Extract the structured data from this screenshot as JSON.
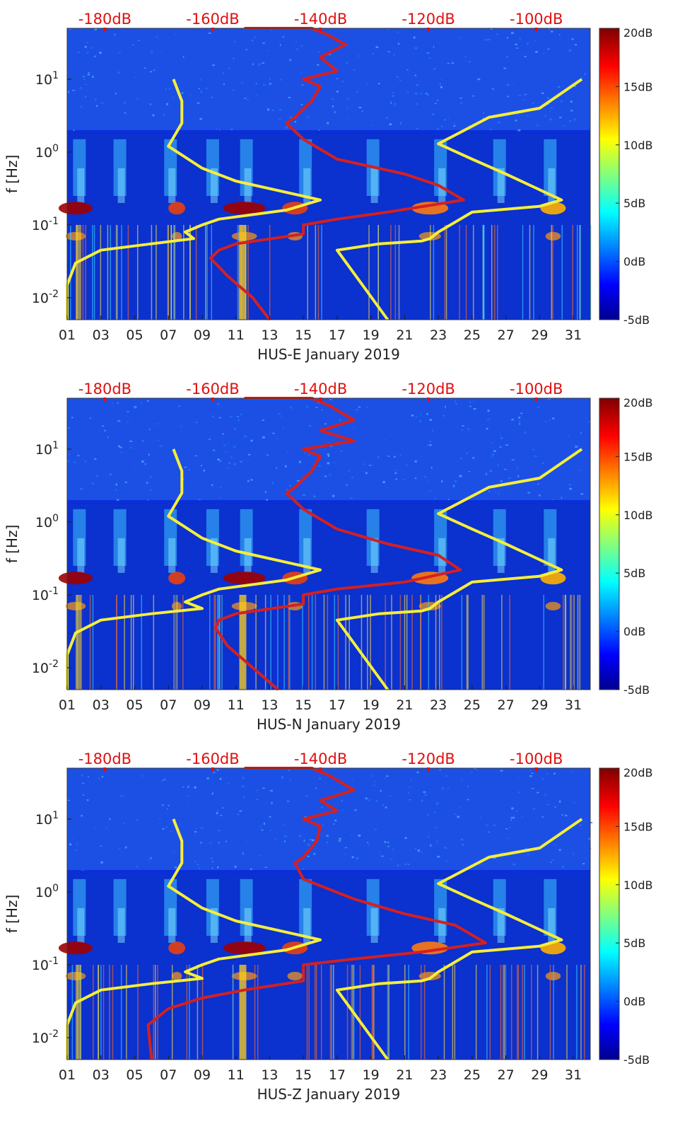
{
  "chart_data": [
    {
      "type": "heatmap",
      "xlabel": "HUS-E January 2019",
      "ylabel": "f [Hz]",
      "xticks": [
        "01",
        "03",
        "05",
        "07",
        "09",
        "11",
        "13",
        "15",
        "17",
        "19",
        "21",
        "23",
        "25",
        "27",
        "29",
        "31"
      ],
      "xlim": [
        1,
        32
      ],
      "yscale": "log",
      "ylim": [
        0.005,
        50
      ],
      "yticks": [
        {
          "v": 0.01,
          "b": "10",
          "e": "-2"
        },
        {
          "v": 0.1,
          "b": "10",
          "e": "-1"
        },
        {
          "v": 1,
          "b": "10",
          "e": "0"
        },
        {
          "v": 10,
          "b": "10",
          "e": "1"
        }
      ],
      "top_axis": {
        "labels": [
          "-180dB",
          "-160dB",
          "-140dB",
          "-120dB",
          "-100dB"
        ],
        "range": [
          -187,
          -90
        ]
      },
      "colorbar": {
        "labels": [
          "20dB",
          "15dB",
          "10dB",
          "5dB",
          "0dB",
          "-5dB"
        ],
        "range": [
          -5,
          20
        ]
      },
      "series": [
        {
          "color": "#f5ee3a",
          "points": [
            [
              1,
              0.005
            ],
            [
              1,
              0.015
            ],
            [
              1.5,
              0.03
            ],
            [
              3,
              0.045
            ],
            [
              6,
              0.055
            ],
            [
              8.5,
              0.065
            ],
            [
              8,
              0.08
            ],
            [
              9,
              0.1
            ],
            [
              10,
              0.12
            ],
            [
              14,
              0.16
            ],
            [
              16,
              0.22
            ],
            [
              11,
              0.4
            ],
            [
              9,
              0.6
            ],
            [
              7,
              1.2
            ],
            [
              7.8,
              2.5
            ],
            [
              7.8,
              5
            ],
            [
              7.3,
              10
            ]
          ]
        },
        {
          "color": "#f5ee3a",
          "points": [
            [
              20,
              0.005
            ],
            [
              17,
              0.045
            ],
            [
              19.5,
              0.055
            ],
            [
              22,
              0.06
            ],
            [
              22.5,
              0.065
            ],
            [
              23,
              0.08
            ],
            [
              25,
              0.15
            ],
            [
              29,
              0.18
            ],
            [
              30.3,
              0.22
            ],
            [
              27,
              0.5
            ],
            [
              25,
              0.8
            ],
            [
              23,
              1.3
            ],
            [
              26,
              3
            ],
            [
              29,
              4
            ],
            [
              31.5,
              10
            ]
          ]
        },
        {
          "color": "#d42020",
          "points": [
            [
              13,
              0.005
            ],
            [
              12,
              0.01
            ],
            [
              10.5,
              0.02
            ],
            [
              9.5,
              0.035
            ],
            [
              10,
              0.045
            ],
            [
              11,
              0.055
            ],
            [
              15,
              0.075
            ],
            [
              15,
              0.1
            ],
            [
              17,
              0.12
            ],
            [
              20,
              0.15
            ],
            [
              24.5,
              0.22
            ],
            [
              23,
              0.35
            ],
            [
              21,
              0.5
            ],
            [
              17,
              0.8
            ],
            [
              15,
              1.5
            ],
            [
              14,
              2.5
            ],
            [
              14.5,
              3
            ],
            [
              15.5,
              5
            ],
            [
              16,
              8
            ],
            [
              15,
              10
            ],
            [
              17,
              13
            ],
            [
              16,
              20
            ],
            [
              17.5,
              30
            ],
            [
              16.5,
              40
            ],
            [
              15.5,
              50
            ],
            [
              11.5,
              50
            ]
          ]
        }
      ]
    },
    {
      "type": "heatmap",
      "xlabel": "HUS-N January 2019",
      "ylabel": "f [Hz]",
      "xticks": [
        "01",
        "03",
        "05",
        "07",
        "09",
        "11",
        "13",
        "15",
        "17",
        "19",
        "21",
        "23",
        "25",
        "27",
        "29",
        "31"
      ],
      "xlim": [
        1,
        32
      ],
      "yscale": "log",
      "ylim": [
        0.005,
        50
      ],
      "yticks": [
        {
          "v": 0.01,
          "b": "10",
          "e": "-2"
        },
        {
          "v": 0.1,
          "b": "10",
          "e": "-1"
        },
        {
          "v": 1,
          "b": "10",
          "e": "0"
        },
        {
          "v": 10,
          "b": "10",
          "e": "1"
        }
      ],
      "top_axis": {
        "labels": [
          "-180dB",
          "-160dB",
          "-140dB",
          "-120dB",
          "-100dB"
        ],
        "range": [
          -187,
          -90
        ]
      },
      "colorbar": {
        "labels": [
          "20dB",
          "15dB",
          "10dB",
          "5dB",
          "0dB",
          "-5dB"
        ],
        "range": [
          -5,
          20
        ]
      },
      "series": [
        {
          "color": "#f5ee3a",
          "points": [
            [
              1,
              0.005
            ],
            [
              1,
              0.015
            ],
            [
              1.5,
              0.03
            ],
            [
              3,
              0.045
            ],
            [
              6,
              0.055
            ],
            [
              9,
              0.065
            ],
            [
              8,
              0.08
            ],
            [
              9,
              0.1
            ],
            [
              10,
              0.12
            ],
            [
              14,
              0.16
            ],
            [
              16,
              0.22
            ],
            [
              11,
              0.4
            ],
            [
              9,
              0.6
            ],
            [
              7,
              1.2
            ],
            [
              7.8,
              2.5
            ],
            [
              7.8,
              5
            ],
            [
              7.3,
              10
            ]
          ]
        },
        {
          "color": "#f5ee3a",
          "points": [
            [
              20,
              0.005
            ],
            [
              17,
              0.045
            ],
            [
              19.5,
              0.055
            ],
            [
              22,
              0.06
            ],
            [
              22.5,
              0.065
            ],
            [
              23,
              0.08
            ],
            [
              25,
              0.15
            ],
            [
              29,
              0.18
            ],
            [
              30.3,
              0.22
            ],
            [
              27,
              0.5
            ],
            [
              25,
              0.8
            ],
            [
              23,
              1.3
            ],
            [
              26,
              3
            ],
            [
              29,
              4
            ],
            [
              31.5,
              10
            ]
          ]
        },
        {
          "color": "#d42020",
          "points": [
            [
              13.5,
              0.005
            ],
            [
              12,
              0.01
            ],
            [
              10.5,
              0.02
            ],
            [
              9.8,
              0.035
            ],
            [
              10,
              0.045
            ],
            [
              11,
              0.055
            ],
            [
              15,
              0.075
            ],
            [
              15,
              0.1
            ],
            [
              17,
              0.12
            ],
            [
              21,
              0.15
            ],
            [
              24.3,
              0.22
            ],
            [
              23,
              0.35
            ],
            [
              20,
              0.5
            ],
            [
              17,
              0.8
            ],
            [
              15,
              1.5
            ],
            [
              14,
              2.5
            ],
            [
              14.5,
              3
            ],
            [
              15.5,
              5
            ],
            [
              16,
              8
            ],
            [
              15,
              10
            ],
            [
              18,
              13
            ],
            [
              16,
              18
            ],
            [
              18,
              25
            ],
            [
              16.5,
              40
            ],
            [
              15.5,
              50
            ],
            [
              11.5,
              50
            ]
          ]
        }
      ]
    },
    {
      "type": "heatmap",
      "xlabel": "HUS-Z January 2019",
      "ylabel": "f [Hz]",
      "xticks": [
        "01",
        "03",
        "05",
        "07",
        "09",
        "11",
        "13",
        "15",
        "17",
        "19",
        "21",
        "23",
        "25",
        "27",
        "29",
        "31"
      ],
      "xlim": [
        1,
        32
      ],
      "yscale": "log",
      "ylim": [
        0.005,
        50
      ],
      "yticks": [
        {
          "v": 0.01,
          "b": "10",
          "e": "-2"
        },
        {
          "v": 0.1,
          "b": "10",
          "e": "-1"
        },
        {
          "v": 1,
          "b": "10",
          "e": "0"
        },
        {
          "v": 10,
          "b": "10",
          "e": "1"
        }
      ],
      "top_axis": {
        "labels": [
          "-180dB",
          "-160dB",
          "-140dB",
          "-120dB",
          "-100dB"
        ],
        "range": [
          -187,
          -90
        ]
      },
      "colorbar": {
        "labels": [
          "20dB",
          "15dB",
          "10dB",
          "5dB",
          "0dB",
          "-5dB"
        ],
        "range": [
          -5,
          20
        ]
      },
      "series": [
        {
          "color": "#f5ee3a",
          "points": [
            [
              1,
              0.005
            ],
            [
              1,
              0.015
            ],
            [
              1.5,
              0.03
            ],
            [
              3,
              0.045
            ],
            [
              6,
              0.055
            ],
            [
              9,
              0.065
            ],
            [
              8,
              0.08
            ],
            [
              9,
              0.1
            ],
            [
              10,
              0.12
            ],
            [
              14,
              0.16
            ],
            [
              16,
              0.22
            ],
            [
              11,
              0.4
            ],
            [
              9,
              0.6
            ],
            [
              7,
              1.2
            ],
            [
              7.8,
              2.5
            ],
            [
              7.8,
              5
            ],
            [
              7.3,
              10
            ]
          ]
        },
        {
          "color": "#f5ee3a",
          "points": [
            [
              20,
              0.005
            ],
            [
              17,
              0.045
            ],
            [
              19.5,
              0.055
            ],
            [
              22,
              0.06
            ],
            [
              22.5,
              0.065
            ],
            [
              23,
              0.08
            ],
            [
              25,
              0.15
            ],
            [
              29,
              0.18
            ],
            [
              30.3,
              0.22
            ],
            [
              27,
              0.5
            ],
            [
              25,
              0.8
            ],
            [
              23,
              1.3
            ],
            [
              26,
              3
            ],
            [
              29,
              4
            ],
            [
              31.5,
              10
            ]
          ]
        },
        {
          "color": "#d42020",
          "points": [
            [
              6,
              0.005
            ],
            [
              5.8,
              0.015
            ],
            [
              7,
              0.025
            ],
            [
              9,
              0.035
            ],
            [
              11.5,
              0.045
            ],
            [
              15,
              0.06
            ],
            [
              15,
              0.1
            ],
            [
              18,
              0.12
            ],
            [
              22,
              0.15
            ],
            [
              25.8,
              0.2
            ],
            [
              24,
              0.35
            ],
            [
              21,
              0.5
            ],
            [
              18,
              0.8
            ],
            [
              15,
              1.5
            ],
            [
              14.5,
              2.5
            ],
            [
              15,
              3
            ],
            [
              15.8,
              5
            ],
            [
              16,
              8
            ],
            [
              15,
              10
            ],
            [
              17,
              13
            ],
            [
              16,
              18
            ],
            [
              18,
              25
            ],
            [
              16.5,
              40
            ],
            [
              15.5,
              50
            ],
            [
              11.5,
              50
            ]
          ]
        }
      ]
    }
  ]
}
